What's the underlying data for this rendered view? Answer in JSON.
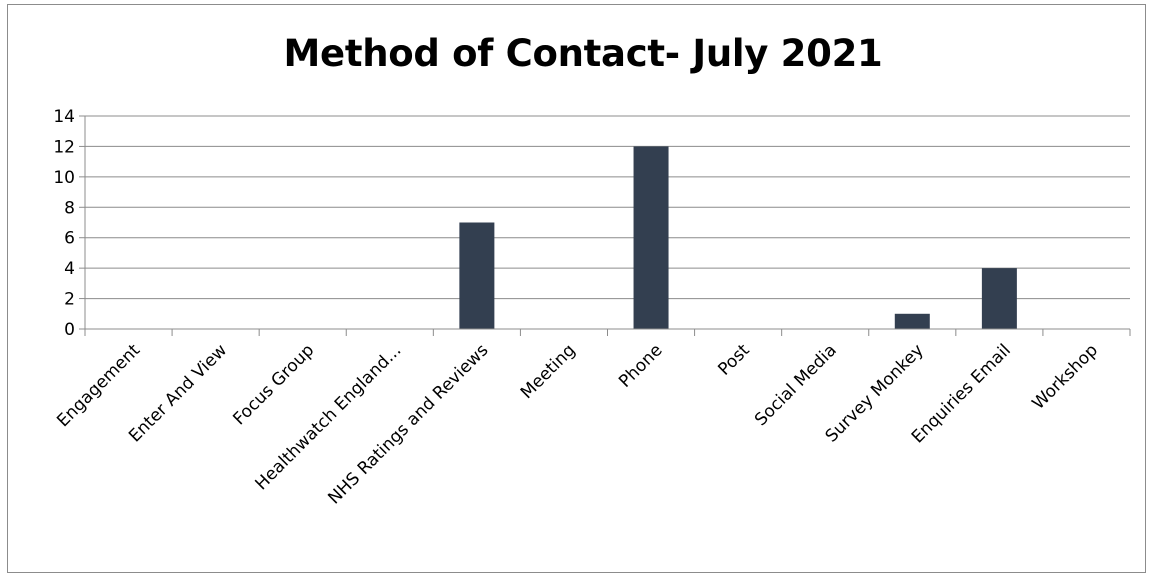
{
  "chart_data": {
    "type": "bar",
    "title": "Method of Contact- July 2021",
    "xlabel": "",
    "ylabel": "",
    "categories": [
      "Engagement",
      "Enter And View",
      "Focus Group",
      "Healthwatch England...",
      "NHS Ratings and Reviews",
      "Meeting",
      "Phone",
      "Post",
      "Social Media",
      "Survey Monkey",
      "Enquiries Email",
      "Workshop"
    ],
    "values": [
      0,
      0,
      0,
      0,
      7,
      0,
      12,
      0,
      0,
      1,
      4,
      0
    ],
    "ylim": [
      0,
      14
    ],
    "yticks": [
      0,
      2,
      4,
      6,
      8,
      10,
      12,
      14
    ],
    "grid": true,
    "legend": "none",
    "bar_color": "#333f50"
  }
}
